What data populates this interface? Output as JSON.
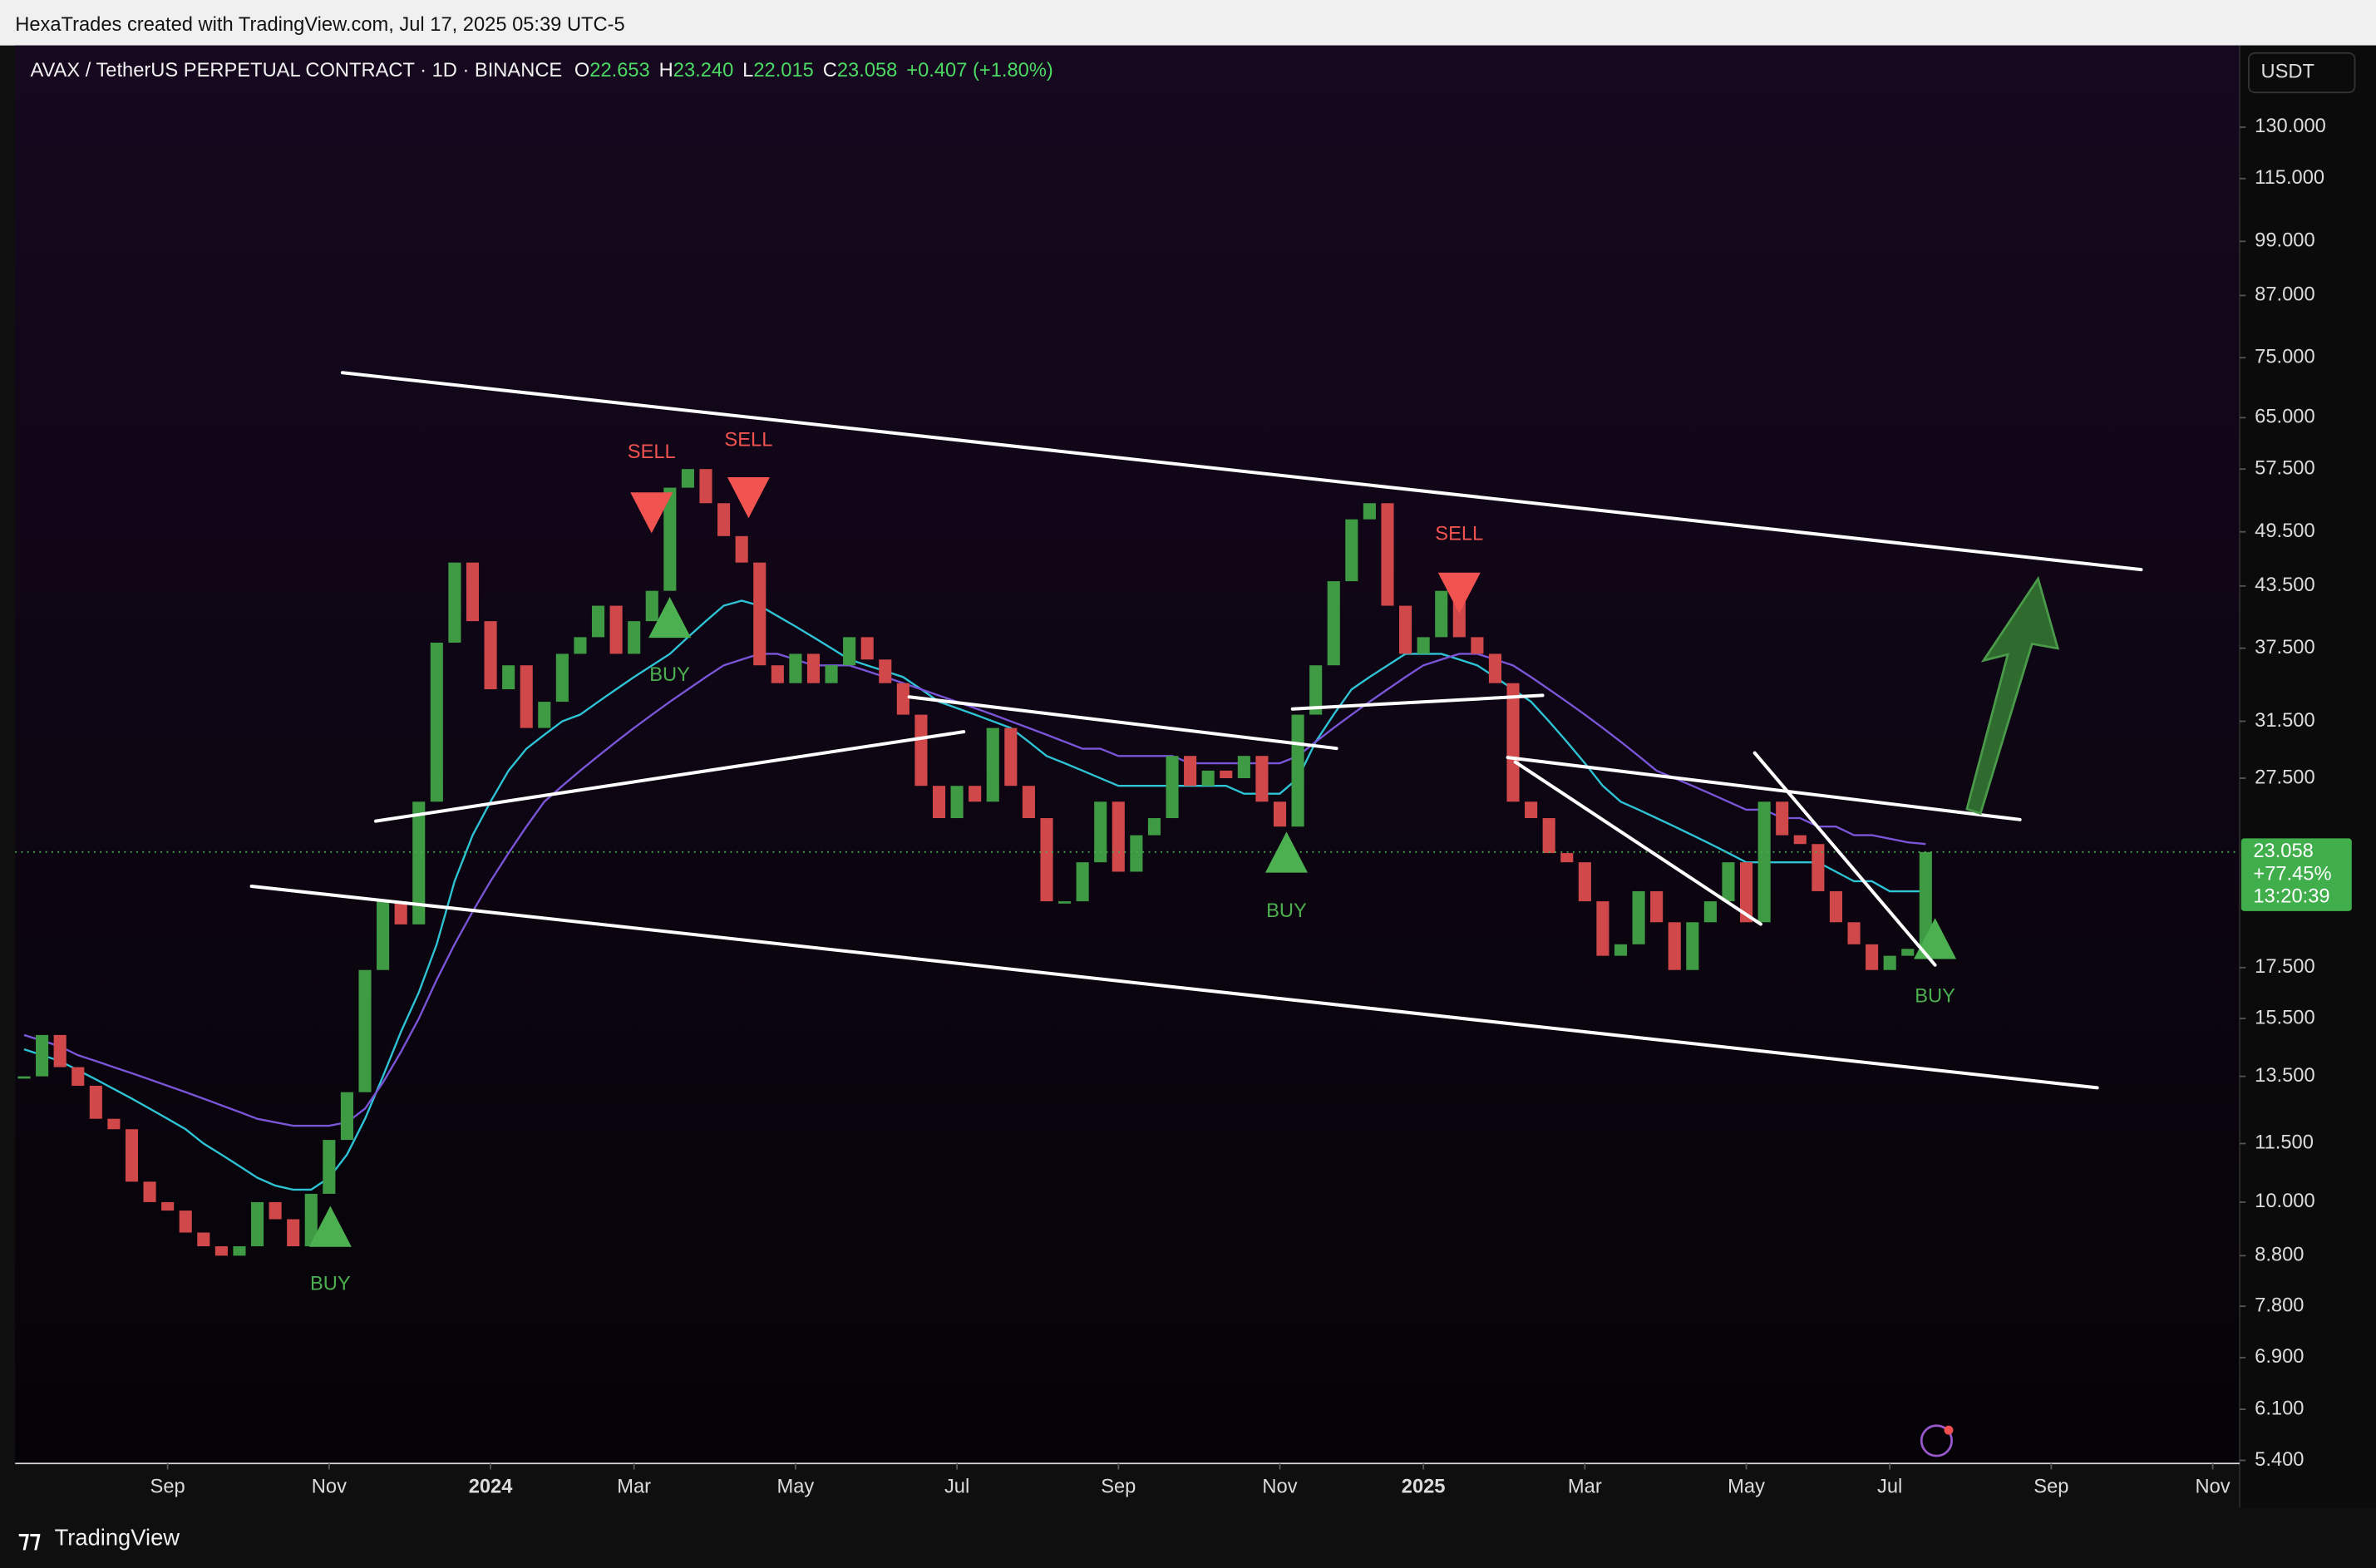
{
  "header": {
    "credit": "HexaTrades created with TradingView.com, Jul 17, 2025 05:39 UTC-5"
  },
  "chart_data": {
    "type": "candlestick",
    "title": "AVAX / TetherUS PERPETUAL CONTRACT · 1D · BINANCE",
    "ohlc": [
      {
        "letter": "O",
        "value": "22.653"
      },
      {
        "letter": "H",
        "value": "23.240"
      },
      {
        "letter": "L",
        "value": "22.015"
      },
      {
        "letter": "C",
        "value": "23.058"
      }
    ],
    "change": "+0.407 (+1.80%)",
    "currency": "USDT",
    "last_price": {
      "value": 23.058,
      "label": "23.058"
    },
    "change_pct": "+77.45%",
    "countdown": "13:20:39",
    "log_scale": true,
    "color_up": "#3f9a44",
    "color_down": "#d0484a",
    "ylim": [
      5.36,
      158
    ],
    "yticks": [
      {
        "value": 130,
        "label": "130.000"
      },
      {
        "value": 115,
        "label": "115.000"
      },
      {
        "value": 99,
        "label": "99.000"
      },
      {
        "value": 87,
        "label": "87.000"
      },
      {
        "value": 75,
        "label": "75.000"
      },
      {
        "value": 65,
        "label": "65.000"
      },
      {
        "value": 57.5,
        "label": "57.500"
      },
      {
        "value": 49.5,
        "label": "49.500"
      },
      {
        "value": 43.5,
        "label": "43.500"
      },
      {
        "value": 37.5,
        "label": "37.500"
      },
      {
        "value": 31.5,
        "label": "31.500"
      },
      {
        "value": 27.5,
        "label": "27.500"
      },
      {
        "value": 17.5,
        "label": "17.500"
      },
      {
        "value": 15.5,
        "label": "15.500"
      },
      {
        "value": 13.5,
        "label": "13.500"
      },
      {
        "value": 11.5,
        "label": "11.500"
      },
      {
        "value": 10,
        "label": "10.000"
      },
      {
        "value": 8.8,
        "label": "8.800"
      },
      {
        "value": 7.8,
        "label": "7.800"
      },
      {
        "value": 6.9,
        "label": "6.900"
      },
      {
        "value": 6.1,
        "label": "6.100"
      },
      {
        "value": 5.4,
        "label": "5.400"
      }
    ],
    "categories": [
      null,
      null,
      null,
      null,
      null,
      null,
      null,
      null,
      "Sep",
      null,
      null,
      null,
      null,
      null,
      null,
      null,
      null,
      "Nov",
      null,
      null,
      null,
      null,
      null,
      null,
      null,
      null,
      "2024",
      null,
      null,
      null,
      null,
      null,
      null,
      null,
      "Mar",
      null,
      null,
      null,
      null,
      null,
      null,
      null,
      null,
      "May",
      null,
      null,
      null,
      null,
      null,
      null,
      null,
      null,
      "Jul",
      null,
      null,
      null,
      null,
      null,
      null,
      null,
      null,
      "Sep",
      null,
      null,
      null,
      null,
      null,
      null,
      null,
      null,
      "Nov",
      null,
      null,
      null,
      null,
      null,
      null,
      null,
      "2025",
      null,
      null,
      null,
      null,
      null,
      null,
      null,
      null,
      "Mar",
      null,
      null,
      null,
      null,
      null,
      null,
      null,
      null,
      "May",
      null,
      null,
      null,
      null,
      null,
      null,
      null,
      "Jul",
      null,
      null,
      null,
      null,
      null,
      null,
      null,
      null,
      "Sep",
      null,
      null,
      null,
      null,
      null,
      null,
      null,
      null,
      "Nov",
      null
    ],
    "close": [
      13.5,
      14.9,
      13.8,
      13.2,
      12.2,
      11.9,
      10.5,
      10.0,
      9.8,
      9.3,
      9.0,
      8.8,
      9.0,
      10.0,
      9.6,
      9.0,
      10.2,
      11.6,
      13.0,
      17.4,
      20.5,
      19.4,
      26.0,
      38,
      46,
      40,
      34,
      36,
      31,
      33,
      37,
      38.5,
      41.5,
      37,
      40,
      43,
      55,
      57.5,
      53,
      49,
      46,
      36,
      34.5,
      37,
      34.5,
      36,
      38.5,
      36.5,
      34.5,
      32,
      27,
      25,
      27,
      26,
      31,
      27,
      25,
      20.5,
      20.5,
      22.5,
      26,
      22,
      24,
      25,
      29,
      27,
      28,
      27.5,
      29,
      26,
      24.5,
      32,
      36,
      44,
      51,
      53,
      41.5,
      37,
      38.5,
      43,
      38.5,
      37,
      34.5,
      26,
      25,
      23,
      22.5,
      20.5,
      18,
      18.5,
      21,
      19.5,
      17.4,
      19.5,
      20.5,
      22.5,
      19.5,
      26,
      24,
      23.5,
      21,
      19.5,
      18.5,
      17.4,
      18,
      18.3,
      23.058,
      null,
      null,
      null,
      null,
      null,
      null,
      null,
      null,
      null,
      null,
      null,
      null,
      null,
      null,
      null,
      null,
      null
    ],
    "ma_lines": [
      {
        "color": "#2ec4d6",
        "values": [
          14.4,
          14.2,
          14.0,
          13.7,
          13.4,
          13.1,
          12.8,
          12.5,
          12.2,
          11.9,
          11.5,
          11.2,
          10.9,
          10.6,
          10.4,
          10.3,
          10.3,
          10.6,
          11.2,
          12.2,
          13.5,
          15.0,
          16.5,
          18.5,
          21.5,
          24,
          26,
          28,
          29.5,
          30.5,
          31.5,
          32,
          33,
          34,
          35,
          36,
          37,
          38.5,
          40,
          41.5,
          42,
          41.5,
          40.5,
          39.5,
          38.5,
          37.5,
          36.5,
          36,
          35.5,
          35,
          34,
          33,
          32.5,
          32,
          31.5,
          31,
          30,
          29,
          28.5,
          28,
          27.5,
          27,
          27,
          27,
          27,
          27,
          27,
          27,
          26.5,
          26.5,
          26.5,
          27.5,
          30,
          32,
          34,
          35,
          36,
          37,
          37,
          37,
          36.5,
          36,
          35,
          34,
          33,
          31.5,
          30,
          28.5,
          27,
          26,
          25.5,
          25,
          24.5,
          24,
          23.5,
          23,
          22.5,
          22.5,
          22.5,
          22.5,
          22.5,
          22,
          21.5,
          21.5,
          21,
          21,
          21,
          null,
          null,
          null,
          null,
          null,
          null,
          null,
          null,
          null,
          null,
          null,
          null,
          null,
          null,
          null,
          null,
          null
        ]
      },
      {
        "color": "#7a55d8",
        "values": [
          14.9,
          14.7,
          14.5,
          14.2,
          14.0,
          13.8,
          13.6,
          13.4,
          13.2,
          13.0,
          12.8,
          12.6,
          12.4,
          12.2,
          12.1,
          12.0,
          12.0,
          12.0,
          12.1,
          12.5,
          13.3,
          14.3,
          15.5,
          17,
          18.5,
          20,
          21.5,
          23,
          24.5,
          26,
          27,
          28,
          29,
          30,
          31,
          32,
          33,
          34,
          35,
          36,
          36.5,
          37,
          37,
          36.5,
          36,
          36,
          36,
          35.5,
          35,
          34.5,
          34,
          33.5,
          33,
          32.5,
          32,
          31.5,
          31,
          30.5,
          30,
          29.5,
          29.5,
          29,
          29,
          29,
          29,
          28.5,
          28.5,
          28.5,
          28.5,
          28.5,
          28.5,
          29,
          30,
          31,
          32,
          33,
          34,
          35,
          36,
          36.5,
          37,
          37,
          36.5,
          36,
          35,
          34,
          33,
          32,
          31,
          30,
          29,
          28,
          27.5,
          27,
          26.5,
          26,
          25.5,
          25.5,
          25,
          25,
          24.5,
          24.5,
          24,
          24,
          23.8,
          23.6,
          23.5,
          null,
          null,
          null,
          null,
          null,
          null,
          null,
          null,
          null,
          null,
          null,
          null,
          null,
          null,
          null,
          null,
          null
        ]
      }
    ],
    "annotations": [
      "SELL",
      "SELL",
      "BUY",
      "BUY",
      "SELL",
      "BUY",
      "BUY"
    ]
  },
  "footer": {
    "brand": "TradingView"
  }
}
